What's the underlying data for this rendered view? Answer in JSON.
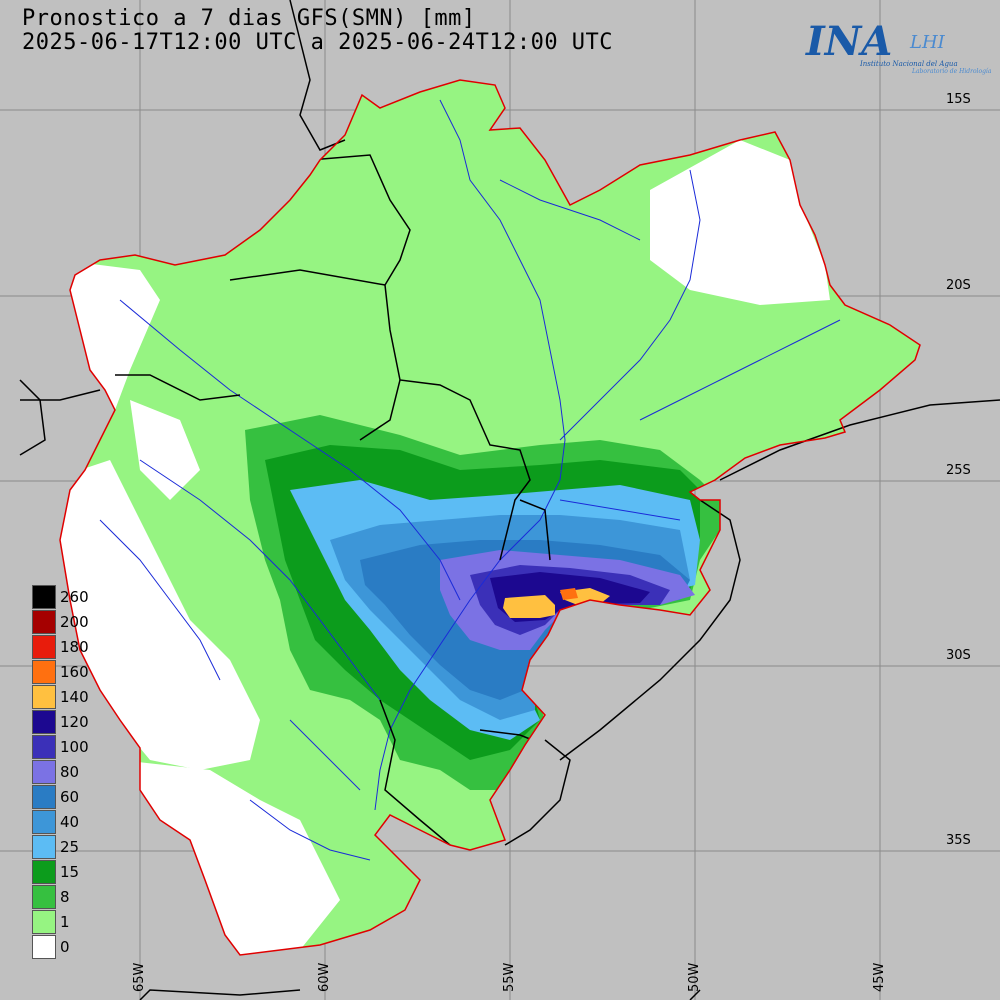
{
  "title": {
    "line1": "Pronostico a 7 dias GFS(SMN) [mm]",
    "line2": "2025-06-17T12:00 UTC a 2025-06-24T12:00 UTC"
  },
  "logo": {
    "name": "INA",
    "sub": "LHI",
    "org": "Instituto Nacional del Agua",
    "lab": "Laboratorio de Hidrología"
  },
  "lat_labels": [
    "15S",
    "20S",
    "25S",
    "30S",
    "35S"
  ],
  "lon_labels": [
    "65W",
    "60W",
    "55W",
    "50W",
    "45W"
  ],
  "legend": [
    {
      "label": "260",
      "color": "#000000"
    },
    {
      "label": "200",
      "color": "#a50000"
    },
    {
      "label": "180",
      "color": "#e81c0c"
    },
    {
      "label": "160",
      "color": "#ff7010"
    },
    {
      "label": "140",
      "color": "#ffc040"
    },
    {
      "label": "120",
      "color": "#1c0890"
    },
    {
      "label": "100",
      "color": "#3b30b8"
    },
    {
      "label": "80",
      "color": "#7b72e4"
    },
    {
      "label": "60",
      "color": "#2a7cc4"
    },
    {
      "label": "40",
      "color": "#3d96d8"
    },
    {
      "label": "25",
      "color": "#5cbcf4"
    },
    {
      "label": "15",
      "color": "#0c9c1c"
    },
    {
      "label": "8",
      "color": "#36c040"
    },
    {
      "label": "1",
      "color": "#96f482"
    },
    {
      "label": "0",
      "color": "#ffffff"
    }
  ]
}
